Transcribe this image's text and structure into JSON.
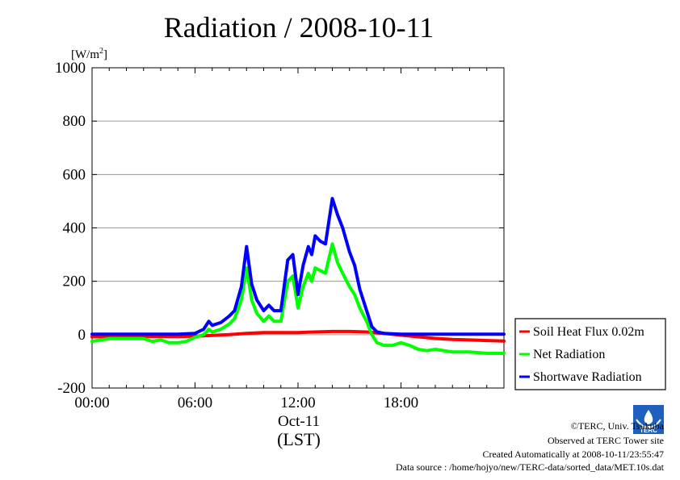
{
  "chart_data": {
    "type": "line",
    "title": "Radiation / 2008-10-11",
    "ylabel": "[W/m2]",
    "ylabel_base": "[W/m",
    "ylabel_sup": "2",
    "ylabel_end": "]",
    "xlabel": "(LST)",
    "date_label": "Oct-11",
    "ylim": [
      -200,
      1000
    ],
    "xlim": [
      0,
      24
    ],
    "y_ticks": [
      -200,
      0,
      200,
      400,
      600,
      800,
      1000
    ],
    "y_tick_labels": [
      "-200",
      "0",
      "200",
      "400",
      "600",
      "800",
      "1000"
    ],
    "x_ticks": [
      0,
      6,
      12,
      18
    ],
    "x_tick_labels": [
      "00:00",
      "06:00",
      "12:00",
      "18:00"
    ],
    "grid": "horizontal",
    "legend_position": "right",
    "series": [
      {
        "name": "Soil Heat Flux 0.02m",
        "color": "#ff0000",
        "x": [
          0,
          2,
          4,
          5,
          6,
          7,
          8,
          9,
          10,
          11,
          12,
          13,
          14,
          15,
          16,
          17,
          18,
          19,
          20,
          21,
          22,
          23,
          24
        ],
        "values": [
          -8,
          -7,
          -7,
          -7,
          -6,
          -3,
          0,
          5,
          8,
          8,
          8,
          10,
          12,
          12,
          10,
          5,
          -2,
          -8,
          -14,
          -18,
          -20,
          -22,
          -24
        ]
      },
      {
        "name": "Net Radiation",
        "color": "#00ff00",
        "x": [
          0,
          0.5,
          1,
          2,
          3,
          3.5,
          4,
          4.5,
          5,
          5.5,
          6,
          6.5,
          6.8,
          7,
          7.5,
          8,
          8.3,
          8.7,
          9,
          9.3,
          9.6,
          10,
          10.3,
          10.6,
          11,
          11.4,
          11.7,
          12,
          12.3,
          12.6,
          12.8,
          13,
          13.3,
          13.6,
          14,
          14.3,
          14.6,
          15,
          15.3,
          15.6,
          16,
          16.3,
          16.6,
          17,
          17.5,
          18,
          18.5,
          19,
          19.5,
          20,
          21,
          22,
          23,
          24
        ],
        "values": [
          -25,
          -20,
          -15,
          -15,
          -15,
          -25,
          -20,
          -30,
          -30,
          -25,
          -10,
          0,
          20,
          10,
          20,
          40,
          60,
          130,
          250,
          130,
          80,
          50,
          70,
          50,
          50,
          200,
          220,
          100,
          180,
          230,
          200,
          250,
          240,
          230,
          340,
          270,
          230,
          180,
          150,
          100,
          50,
          0,
          -30,
          -40,
          -40,
          -30,
          -40,
          -55,
          -60,
          -55,
          -65,
          -65,
          -70,
          -70
        ]
      },
      {
        "name": "Shortwave Radiation",
        "color": "#0000ff",
        "x": [
          0,
          2,
          4,
          5,
          5.5,
          6,
          6.5,
          6.8,
          7,
          7.5,
          8,
          8.3,
          8.7,
          9,
          9.3,
          9.6,
          10,
          10.3,
          10.6,
          11,
          11.4,
          11.7,
          12,
          12.3,
          12.6,
          12.8,
          13,
          13.3,
          13.6,
          14,
          14.3,
          14.6,
          15,
          15.3,
          15.6,
          16,
          16.3,
          16.6,
          17,
          18,
          20,
          22,
          24
        ],
        "values": [
          2,
          2,
          2,
          2,
          3,
          5,
          20,
          50,
          35,
          45,
          70,
          90,
          180,
          330,
          190,
          130,
          90,
          110,
          90,
          90,
          280,
          300,
          150,
          260,
          330,
          300,
          370,
          350,
          340,
          510,
          450,
          400,
          310,
          260,
          170,
          90,
          30,
          10,
          5,
          2,
          2,
          2,
          2
        ]
      }
    ]
  },
  "footer": {
    "copyright": "©TERC, Univ. Tsukuba",
    "observed": "Observed at TERC Tower site",
    "created": "Created Automatically at 2008-10-11/23:55:47",
    "source": "Data source : /home/hojyo/new/TERC-data/sorted_data/MET.10s.dat"
  },
  "logo": {
    "text": "TERC",
    "color": "#1f5fbf"
  }
}
